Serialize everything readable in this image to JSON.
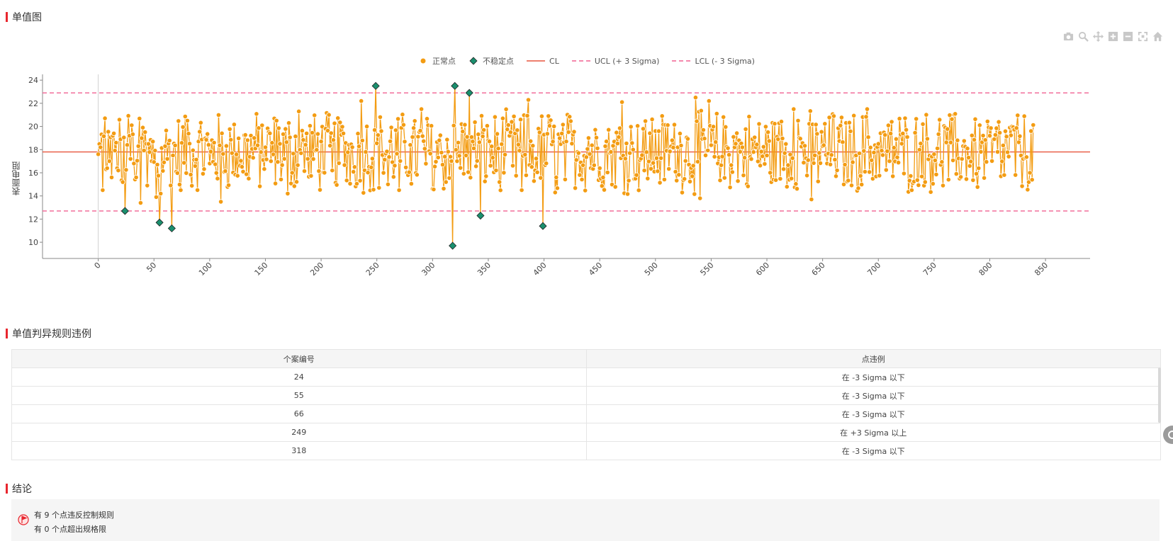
{
  "sections": {
    "chart_title": "单值图",
    "rules_title": "单值判异规则违例",
    "conclusion_title": "结论"
  },
  "toolbar": {
    "icons": [
      "camera-icon",
      "zoom-icon",
      "pan-icon",
      "zoom-in-icon",
      "zoom-out-icon",
      "autoscale-icon",
      "home-icon"
    ]
  },
  "legend": {
    "normal": "正常点",
    "unstable": "不稳定点",
    "cl": "CL",
    "ucl": "UCL (+ 3 Sigma)",
    "lcl": "LCL (- 3 Sigma)"
  },
  "chart_data": {
    "type": "line",
    "ylabel": "表面电阻",
    "xlim": [
      -50,
      890
    ],
    "ylim": [
      8.6,
      24.5
    ],
    "xticks": [
      0,
      50,
      100,
      150,
      200,
      250,
      300,
      350,
      400,
      450,
      500,
      550,
      600,
      650,
      700,
      750,
      800,
      850
    ],
    "yticks": [
      10,
      12,
      14,
      16,
      18,
      20,
      22,
      24
    ],
    "cl": 17.8,
    "ucl": 22.9,
    "lcl": 12.7,
    "n_points": 840,
    "series": [
      {
        "name": "正常点",
        "color": "#f39c12",
        "x": [
          0,
          2,
          4,
          6,
          8,
          10,
          12,
          14,
          16,
          18,
          20,
          22,
          26,
          28,
          30,
          32,
          34,
          36,
          38,
          40,
          44,
          48,
          52,
          56,
          60,
          62,
          70,
          74,
          80,
          90,
          100,
          104,
          110,
          120,
          130,
          140,
          150,
          160,
          170,
          180,
          188,
          200,
          210,
          220,
          230,
          236,
          240,
          254,
          260,
          270,
          280,
          290,
          300,
          306,
          312,
          322,
          326,
          330,
          336,
          346,
          350,
          360,
          370,
          380,
          386,
          392,
          404,
          410,
          420,
          430,
          440,
          450,
          460,
          470,
          480,
          490,
          500,
          510,
          520,
          530,
          536,
          540,
          548,
          560,
          570,
          580,
          590,
          600,
          610,
          620,
          624,
          628,
          640,
          650,
          660,
          670,
          680,
          690,
          700,
          710,
          720,
          730,
          740,
          750,
          760,
          770,
          780,
          790,
          800,
          810,
          820,
          830,
          838
        ],
        "y": [
          17.6,
          18.2,
          14.5,
          20.7,
          16.4,
          17.0,
          15.6,
          19.4,
          18.6,
          16.2,
          18.9,
          15.2,
          18.4,
          19.2,
          20.1,
          16.8,
          15.6,
          18.3,
          13.4,
          19.9,
          14.9,
          17.0,
          13.9,
          14.2,
          18.3,
          17.2,
          16.1,
          14.5,
          20.5,
          18.7,
          16.8,
          18.6,
          13.5,
          17.7,
          16.1,
          19.0,
          18.2,
          20.5,
          14.2,
          21.3,
          17.2,
          18.7,
          16.2,
          19.4,
          16.5,
          22.2,
          17.8,
          19.6,
          15.0,
          14.5,
          18.4,
          21.5,
          14.6,
          18.8,
          15.2,
          17.0,
          20.2,
          17.5,
          18.7,
          19.7,
          18.8,
          15.2,
          19.5,
          14.5,
          22.3,
          16.2,
          20.9,
          14.3,
          18.7,
          17.8,
          19.0,
          16.4,
          17.8,
          22.1,
          18.0,
          16.2,
          19.6,
          17.9,
          18.2,
          16.7,
          22.5,
          13.8,
          22.2,
          17.4,
          19.1,
          17.3,
          18.2,
          17.5,
          18.9,
          15.4,
          21.5,
          20.5,
          13.7,
          18.3,
          20.9,
          16.7,
          17.5,
          21.5,
          18.5,
          17.0,
          19.3,
          14.5,
          20.2,
          17.6,
          19.9,
          15.9,
          18.1,
          16.4,
          19.2,
          15.7,
          20.0,
          17.2,
          15.4
        ]
      },
      {
        "name": "不稳定点",
        "color": "#1a8f6e",
        "x": [
          24,
          55,
          66,
          249,
          318,
          320,
          333,
          343,
          399
        ],
        "y": [
          12.7,
          11.7,
          11.2,
          23.5,
          9.7,
          23.5,
          22.9,
          12.3,
          11.4
        ]
      }
    ]
  },
  "table": {
    "headers": [
      "个案编号",
      "点违例"
    ],
    "rows": [
      [
        "24",
        "在 -3 Sigma 以下"
      ],
      [
        "55",
        "在 -3 Sigma 以下"
      ],
      [
        "66",
        "在 -3 Sigma 以下"
      ],
      [
        "249",
        "在 +3 Sigma 以上"
      ],
      [
        "318",
        "在 -3 Sigma 以下"
      ]
    ]
  },
  "conclusion": {
    "line1": "有 9 个点违反控制规则",
    "line2": "有 0 个点超出规格限"
  }
}
